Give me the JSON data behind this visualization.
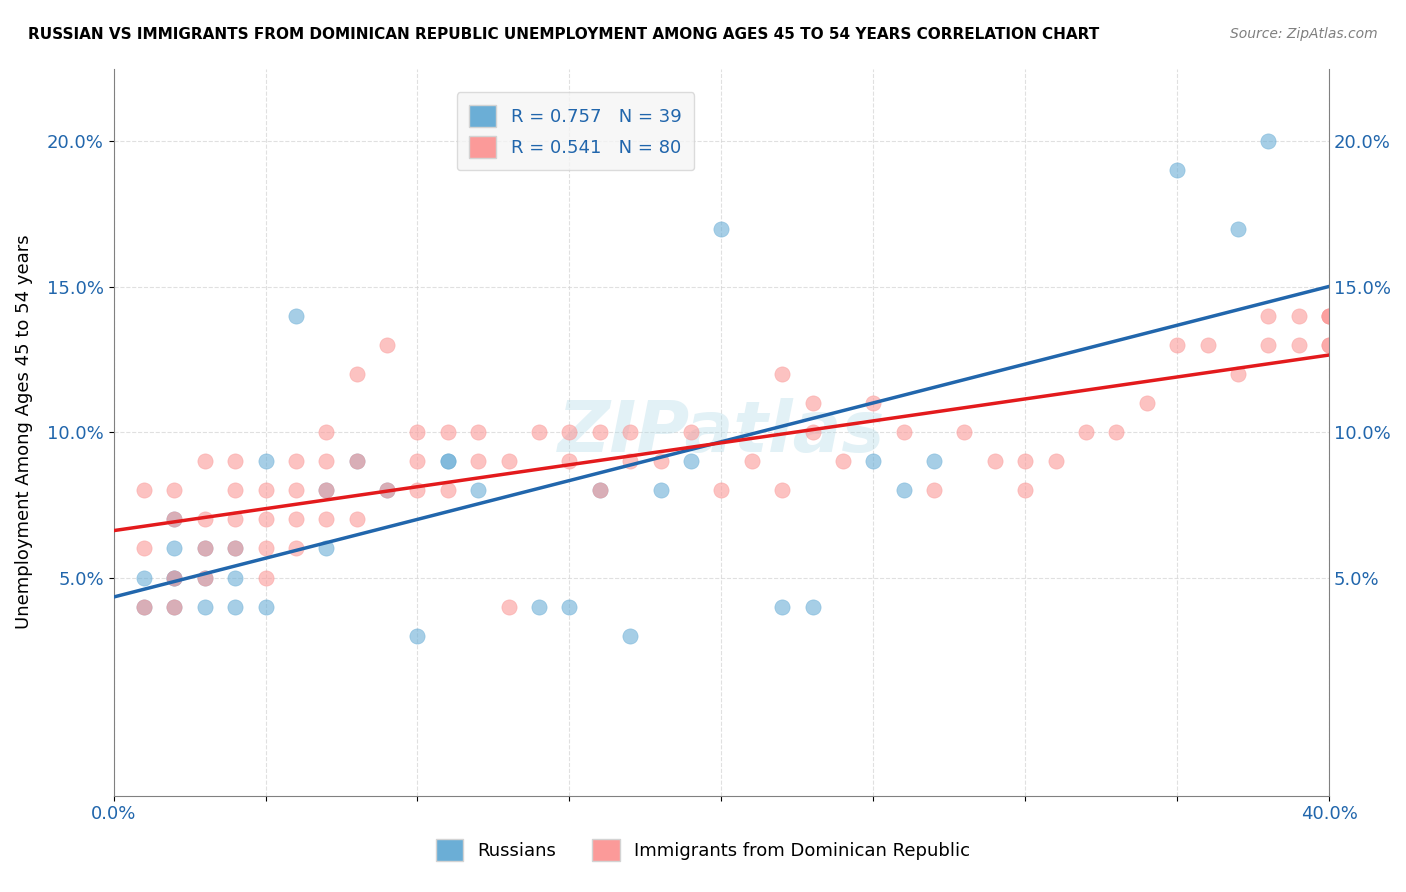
{
  "title": "RUSSIAN VS IMMIGRANTS FROM DOMINICAN REPUBLIC UNEMPLOYMENT AMONG AGES 45 TO 54 YEARS CORRELATION CHART",
  "source": "Source: ZipAtlas.com",
  "ylabel": "Unemployment Among Ages 45 to 54 years",
  "xlim": [
    0.0,
    0.4
  ],
  "ylim": [
    -0.025,
    0.225
  ],
  "xticks": [
    0.0,
    0.05,
    0.1,
    0.15,
    0.2,
    0.25,
    0.3,
    0.35,
    0.4
  ],
  "xticklabels": [
    "0.0%",
    "",
    "",
    "",
    "",
    "",
    "",
    "",
    "40.0%"
  ],
  "ytick_positions": [
    0.05,
    0.1,
    0.15,
    0.2
  ],
  "ytick_labels": [
    "5.0%",
    "10.0%",
    "15.0%",
    "20.0%"
  ],
  "russians_R": 0.757,
  "russians_N": 39,
  "dominican_R": 0.541,
  "dominican_N": 80,
  "blue_color": "#6baed6",
  "pink_color": "#fb9a99",
  "blue_line_color": "#2166ac",
  "pink_line_color": "#e31a1c",
  "watermark": "ZIPatlas",
  "russians_x": [
    0.01,
    0.01,
    0.02,
    0.02,
    0.02,
    0.02,
    0.02,
    0.03,
    0.03,
    0.03,
    0.04,
    0.04,
    0.04,
    0.05,
    0.05,
    0.06,
    0.07,
    0.07,
    0.08,
    0.09,
    0.1,
    0.11,
    0.11,
    0.12,
    0.14,
    0.15,
    0.16,
    0.17,
    0.18,
    0.19,
    0.2,
    0.22,
    0.23,
    0.25,
    0.26,
    0.27,
    0.35,
    0.37,
    0.38
  ],
  "russians_y": [
    0.04,
    0.05,
    0.04,
    0.05,
    0.06,
    0.07,
    0.05,
    0.04,
    0.05,
    0.06,
    0.04,
    0.05,
    0.06,
    0.04,
    0.09,
    0.14,
    0.06,
    0.08,
    0.09,
    0.08,
    0.03,
    0.09,
    0.09,
    0.08,
    0.04,
    0.04,
    0.08,
    0.03,
    0.08,
    0.09,
    0.17,
    0.04,
    0.04,
    0.09,
    0.08,
    0.09,
    0.19,
    0.17,
    0.2
  ],
  "dominican_x": [
    0.01,
    0.01,
    0.01,
    0.02,
    0.02,
    0.02,
    0.02,
    0.03,
    0.03,
    0.03,
    0.03,
    0.04,
    0.04,
    0.04,
    0.04,
    0.05,
    0.05,
    0.05,
    0.05,
    0.06,
    0.06,
    0.06,
    0.06,
    0.07,
    0.07,
    0.07,
    0.07,
    0.08,
    0.08,
    0.08,
    0.09,
    0.09,
    0.1,
    0.1,
    0.1,
    0.11,
    0.11,
    0.12,
    0.12,
    0.13,
    0.13,
    0.14,
    0.15,
    0.15,
    0.16,
    0.16,
    0.17,
    0.17,
    0.18,
    0.19,
    0.2,
    0.21,
    0.22,
    0.22,
    0.23,
    0.23,
    0.24,
    0.25,
    0.26,
    0.27,
    0.28,
    0.29,
    0.3,
    0.3,
    0.31,
    0.32,
    0.33,
    0.34,
    0.35,
    0.36,
    0.37,
    0.38,
    0.38,
    0.39,
    0.39,
    0.4,
    0.4,
    0.4,
    0.4,
    0.4
  ],
  "dominican_y": [
    0.04,
    0.06,
    0.08,
    0.04,
    0.05,
    0.07,
    0.08,
    0.05,
    0.06,
    0.07,
    0.09,
    0.06,
    0.07,
    0.08,
    0.09,
    0.05,
    0.06,
    0.07,
    0.08,
    0.06,
    0.07,
    0.08,
    0.09,
    0.07,
    0.08,
    0.09,
    0.1,
    0.07,
    0.09,
    0.12,
    0.08,
    0.13,
    0.08,
    0.09,
    0.1,
    0.08,
    0.1,
    0.09,
    0.1,
    0.04,
    0.09,
    0.1,
    0.09,
    0.1,
    0.08,
    0.1,
    0.09,
    0.1,
    0.09,
    0.1,
    0.08,
    0.09,
    0.08,
    0.12,
    0.1,
    0.11,
    0.09,
    0.11,
    0.1,
    0.08,
    0.1,
    0.09,
    0.08,
    0.09,
    0.09,
    0.1,
    0.1,
    0.11,
    0.13,
    0.13,
    0.12,
    0.13,
    0.14,
    0.13,
    0.14,
    0.13,
    0.13,
    0.14,
    0.14,
    0.14
  ]
}
